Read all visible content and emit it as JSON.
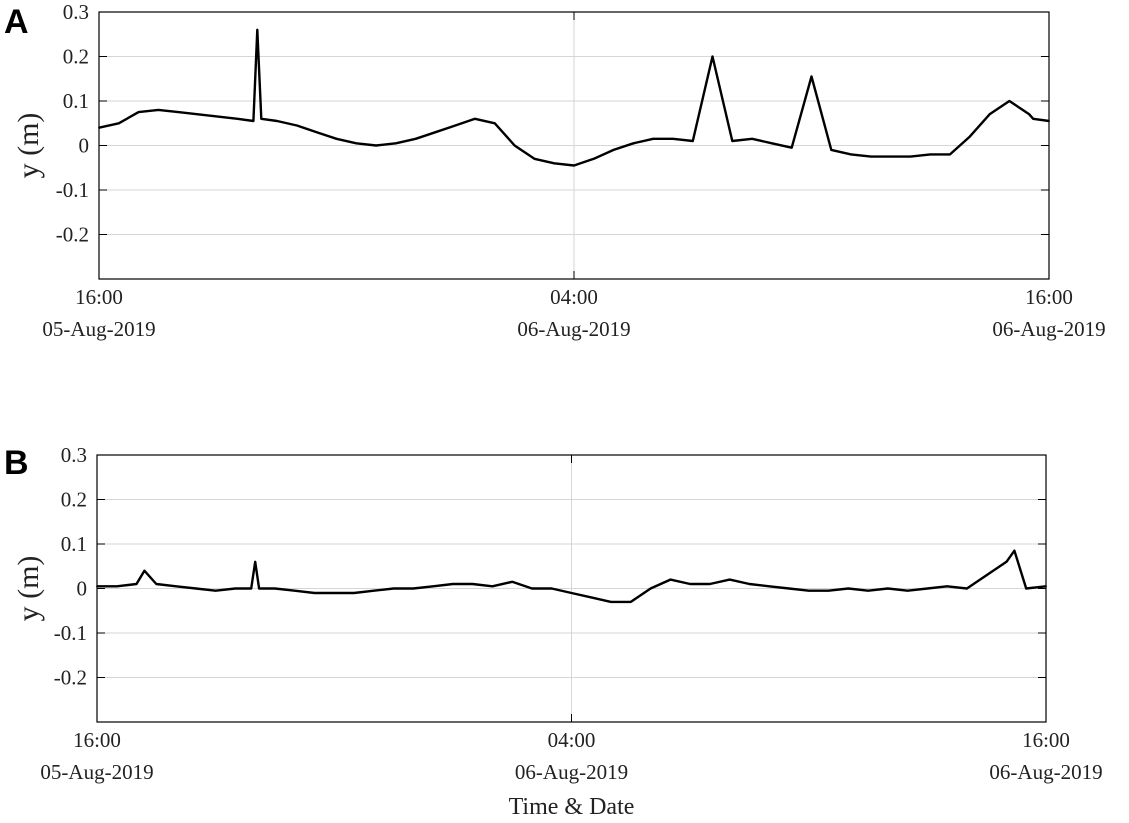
{
  "chart_data": [
    {
      "panel_label": "A",
      "type": "line",
      "ylabel": "y (m)",
      "xlabel": "",
      "ylim": [
        -0.3,
        0.3
      ],
      "yticks": [
        "0.3",
        "0.2",
        "0.1",
        "0",
        "-0.1",
        "-0.2"
      ],
      "xticks": [
        {
          "time": "16:00",
          "date": "05-Aug-2019"
        },
        {
          "time": "04:00",
          "date": "06-Aug-2019"
        },
        {
          "time": "16:00",
          "date": "06-Aug-2019"
        }
      ],
      "x_range_hours": [
        0,
        24
      ],
      "grid": true,
      "series": [
        {
          "color": "#000000",
          "x_hours": [
            0,
            0.5,
            1.0,
            1.5,
            2.0,
            2.5,
            3.0,
            3.5,
            3.9,
            4.0,
            4.1,
            4.5,
            5.0,
            5.5,
            6.0,
            6.5,
            7.0,
            7.5,
            8.0,
            8.5,
            9.0,
            9.5,
            10.0,
            10.5,
            11.0,
            11.5,
            12.0,
            12.5,
            13.0,
            13.5,
            14.0,
            14.5,
            15.0,
            15.5,
            16.0,
            16.5,
            17.0,
            17.5,
            18.0,
            18.5,
            19.0,
            19.5,
            20.0,
            20.5,
            21.0,
            21.5,
            22.0,
            22.5,
            23.0,
            23.5,
            23.6,
            24.0
          ],
          "y": [
            0.04,
            0.05,
            0.075,
            0.08,
            0.075,
            0.07,
            0.065,
            0.06,
            0.055,
            0.26,
            0.06,
            0.055,
            0.045,
            0.03,
            0.015,
            0.005,
            0.0,
            0.005,
            0.015,
            0.03,
            0.045,
            0.06,
            0.05,
            0.0,
            -0.03,
            -0.04,
            -0.045,
            -0.03,
            -0.01,
            0.005,
            0.015,
            0.015,
            0.01,
            0.2,
            0.01,
            0.015,
            0.005,
            -0.005,
            0.155,
            -0.01,
            -0.02,
            -0.025,
            -0.025,
            -0.025,
            -0.02,
            -0.02,
            0.02,
            0.07,
            0.1,
            0.07,
            0.06,
            0.055
          ]
        }
      ]
    },
    {
      "panel_label": "B",
      "type": "line",
      "ylabel": "y (m)",
      "xlabel": "Time & Date",
      "ylim": [
        -0.3,
        0.3
      ],
      "yticks": [
        "0.3",
        "0.2",
        "0.1",
        "0",
        "-0.1",
        "-0.2"
      ],
      "xticks": [
        {
          "time": "16:00",
          "date": "05-Aug-2019"
        },
        {
          "time": "04:00",
          "date": "06-Aug-2019"
        },
        {
          "time": "16:00",
          "date": "06-Aug-2019"
        }
      ],
      "x_range_hours": [
        0,
        24
      ],
      "grid": true,
      "series": [
        {
          "color": "#000000",
          "x_hours": [
            0,
            0.5,
            1.0,
            1.2,
            1.5,
            2.0,
            2.5,
            3.0,
            3.5,
            3.9,
            4.0,
            4.1,
            4.5,
            5.0,
            5.5,
            6.0,
            6.5,
            7.0,
            7.5,
            8.0,
            8.5,
            9.0,
            9.5,
            10.0,
            10.5,
            11.0,
            11.5,
            12.0,
            12.5,
            13.0,
            13.5,
            14.0,
            14.5,
            15.0,
            15.5,
            16.0,
            16.5,
            17.0,
            17.5,
            18.0,
            18.5,
            19.0,
            19.5,
            20.0,
            20.5,
            21.0,
            21.5,
            22.0,
            22.5,
            23.0,
            23.2,
            23.5,
            24.0
          ],
          "y": [
            0.005,
            0.005,
            0.01,
            0.04,
            0.01,
            0.005,
            0.0,
            -0.005,
            0.0,
            0.0,
            0.06,
            0.0,
            0.0,
            -0.005,
            -0.01,
            -0.01,
            -0.01,
            -0.005,
            0.0,
            0.0,
            0.005,
            0.01,
            0.01,
            0.005,
            0.015,
            0.0,
            0.0,
            -0.01,
            -0.02,
            -0.03,
            -0.03,
            0.0,
            0.02,
            0.01,
            0.01,
            0.02,
            0.01,
            0.005,
            0.0,
            -0.005,
            -0.005,
            0.0,
            -0.005,
            0.0,
            -0.005,
            0.0,
            0.005,
            0.0,
            0.03,
            0.06,
            0.085,
            0.0,
            0.005
          ]
        }
      ]
    }
  ]
}
